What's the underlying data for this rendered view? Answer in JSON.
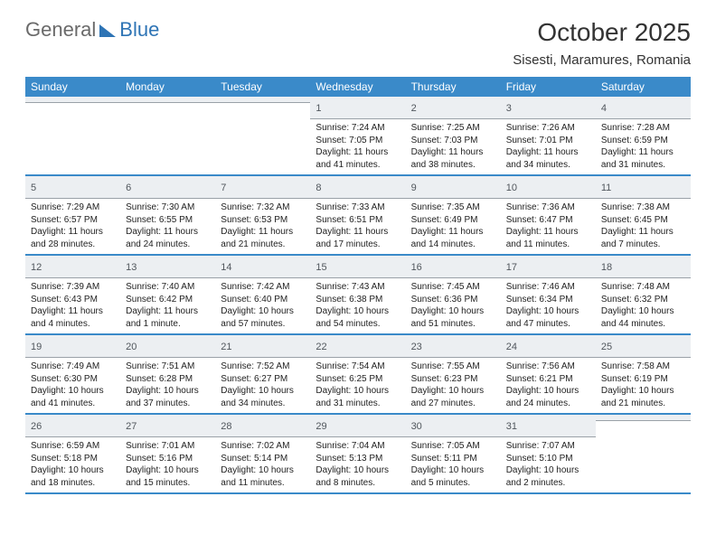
{
  "brand": {
    "left": "General",
    "right": "Blue"
  },
  "title": "October 2025",
  "location": "Sisesti, Maramures, Romania",
  "colors": {
    "accent": "#3a8ac9",
    "logo_blue": "#2e74b5",
    "header_bg": "#3a8ac9",
    "daynum_bg": "#eceff2",
    "row_border": "#3a8ac9",
    "text": "#222222"
  },
  "weekdays": [
    "Sunday",
    "Monday",
    "Tuesday",
    "Wednesday",
    "Thursday",
    "Friday",
    "Saturday"
  ],
  "weeks": [
    [
      {
        "day": "",
        "sunrise": "",
        "sunset": "",
        "daylight": ""
      },
      {
        "day": "",
        "sunrise": "",
        "sunset": "",
        "daylight": ""
      },
      {
        "day": "",
        "sunrise": "",
        "sunset": "",
        "daylight": ""
      },
      {
        "day": "1",
        "sunrise": "Sunrise: 7:24 AM",
        "sunset": "Sunset: 7:05 PM",
        "daylight": "Daylight: 11 hours and 41 minutes."
      },
      {
        "day": "2",
        "sunrise": "Sunrise: 7:25 AM",
        "sunset": "Sunset: 7:03 PM",
        "daylight": "Daylight: 11 hours and 38 minutes."
      },
      {
        "day": "3",
        "sunrise": "Sunrise: 7:26 AM",
        "sunset": "Sunset: 7:01 PM",
        "daylight": "Daylight: 11 hours and 34 minutes."
      },
      {
        "day": "4",
        "sunrise": "Sunrise: 7:28 AM",
        "sunset": "Sunset: 6:59 PM",
        "daylight": "Daylight: 11 hours and 31 minutes."
      }
    ],
    [
      {
        "day": "5",
        "sunrise": "Sunrise: 7:29 AM",
        "sunset": "Sunset: 6:57 PM",
        "daylight": "Daylight: 11 hours and 28 minutes."
      },
      {
        "day": "6",
        "sunrise": "Sunrise: 7:30 AM",
        "sunset": "Sunset: 6:55 PM",
        "daylight": "Daylight: 11 hours and 24 minutes."
      },
      {
        "day": "7",
        "sunrise": "Sunrise: 7:32 AM",
        "sunset": "Sunset: 6:53 PM",
        "daylight": "Daylight: 11 hours and 21 minutes."
      },
      {
        "day": "8",
        "sunrise": "Sunrise: 7:33 AM",
        "sunset": "Sunset: 6:51 PM",
        "daylight": "Daylight: 11 hours and 17 minutes."
      },
      {
        "day": "9",
        "sunrise": "Sunrise: 7:35 AM",
        "sunset": "Sunset: 6:49 PM",
        "daylight": "Daylight: 11 hours and 14 minutes."
      },
      {
        "day": "10",
        "sunrise": "Sunrise: 7:36 AM",
        "sunset": "Sunset: 6:47 PM",
        "daylight": "Daylight: 11 hours and 11 minutes."
      },
      {
        "day": "11",
        "sunrise": "Sunrise: 7:38 AM",
        "sunset": "Sunset: 6:45 PM",
        "daylight": "Daylight: 11 hours and 7 minutes."
      }
    ],
    [
      {
        "day": "12",
        "sunrise": "Sunrise: 7:39 AM",
        "sunset": "Sunset: 6:43 PM",
        "daylight": "Daylight: 11 hours and 4 minutes."
      },
      {
        "day": "13",
        "sunrise": "Sunrise: 7:40 AM",
        "sunset": "Sunset: 6:42 PM",
        "daylight": "Daylight: 11 hours and 1 minute."
      },
      {
        "day": "14",
        "sunrise": "Sunrise: 7:42 AM",
        "sunset": "Sunset: 6:40 PM",
        "daylight": "Daylight: 10 hours and 57 minutes."
      },
      {
        "day": "15",
        "sunrise": "Sunrise: 7:43 AM",
        "sunset": "Sunset: 6:38 PM",
        "daylight": "Daylight: 10 hours and 54 minutes."
      },
      {
        "day": "16",
        "sunrise": "Sunrise: 7:45 AM",
        "sunset": "Sunset: 6:36 PM",
        "daylight": "Daylight: 10 hours and 51 minutes."
      },
      {
        "day": "17",
        "sunrise": "Sunrise: 7:46 AM",
        "sunset": "Sunset: 6:34 PM",
        "daylight": "Daylight: 10 hours and 47 minutes."
      },
      {
        "day": "18",
        "sunrise": "Sunrise: 7:48 AM",
        "sunset": "Sunset: 6:32 PM",
        "daylight": "Daylight: 10 hours and 44 minutes."
      }
    ],
    [
      {
        "day": "19",
        "sunrise": "Sunrise: 7:49 AM",
        "sunset": "Sunset: 6:30 PM",
        "daylight": "Daylight: 10 hours and 41 minutes."
      },
      {
        "day": "20",
        "sunrise": "Sunrise: 7:51 AM",
        "sunset": "Sunset: 6:28 PM",
        "daylight": "Daylight: 10 hours and 37 minutes."
      },
      {
        "day": "21",
        "sunrise": "Sunrise: 7:52 AM",
        "sunset": "Sunset: 6:27 PM",
        "daylight": "Daylight: 10 hours and 34 minutes."
      },
      {
        "day": "22",
        "sunrise": "Sunrise: 7:54 AM",
        "sunset": "Sunset: 6:25 PM",
        "daylight": "Daylight: 10 hours and 31 minutes."
      },
      {
        "day": "23",
        "sunrise": "Sunrise: 7:55 AM",
        "sunset": "Sunset: 6:23 PM",
        "daylight": "Daylight: 10 hours and 27 minutes."
      },
      {
        "day": "24",
        "sunrise": "Sunrise: 7:56 AM",
        "sunset": "Sunset: 6:21 PM",
        "daylight": "Daylight: 10 hours and 24 minutes."
      },
      {
        "day": "25",
        "sunrise": "Sunrise: 7:58 AM",
        "sunset": "Sunset: 6:19 PM",
        "daylight": "Daylight: 10 hours and 21 minutes."
      }
    ],
    [
      {
        "day": "26",
        "sunrise": "Sunrise: 6:59 AM",
        "sunset": "Sunset: 5:18 PM",
        "daylight": "Daylight: 10 hours and 18 minutes."
      },
      {
        "day": "27",
        "sunrise": "Sunrise: 7:01 AM",
        "sunset": "Sunset: 5:16 PM",
        "daylight": "Daylight: 10 hours and 15 minutes."
      },
      {
        "day": "28",
        "sunrise": "Sunrise: 7:02 AM",
        "sunset": "Sunset: 5:14 PM",
        "daylight": "Daylight: 10 hours and 11 minutes."
      },
      {
        "day": "29",
        "sunrise": "Sunrise: 7:04 AM",
        "sunset": "Sunset: 5:13 PM",
        "daylight": "Daylight: 10 hours and 8 minutes."
      },
      {
        "day": "30",
        "sunrise": "Sunrise: 7:05 AM",
        "sunset": "Sunset: 5:11 PM",
        "daylight": "Daylight: 10 hours and 5 minutes."
      },
      {
        "day": "31",
        "sunrise": "Sunrise: 7:07 AM",
        "sunset": "Sunset: 5:10 PM",
        "daylight": "Daylight: 10 hours and 2 minutes."
      },
      {
        "day": "",
        "sunrise": "",
        "sunset": "",
        "daylight": ""
      }
    ]
  ]
}
